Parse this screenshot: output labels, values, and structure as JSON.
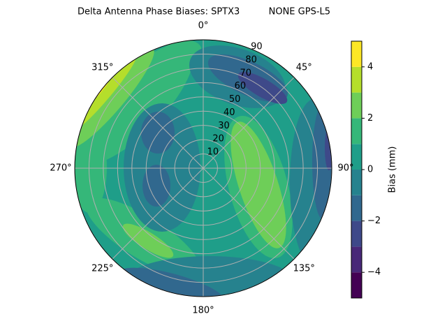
{
  "chart_data": {
    "type": "polar-contour",
    "title": "Delta Antenna Phase Biases: SPTX3          NONE GPS-L5",
    "rlim": [
      0,
      90
    ],
    "rticks": [
      10,
      20,
      30,
      40,
      50,
      60,
      70,
      80,
      90
    ],
    "thetaticks": [
      {
        "value": 0,
        "label": "0°"
      },
      {
        "value": 45,
        "label": "45°"
      },
      {
        "value": 90,
        "label": "90°"
      },
      {
        "value": 135,
        "label": "135°"
      },
      {
        "value": 180,
        "label": "180°"
      },
      {
        "value": 225,
        "label": "225°"
      },
      {
        "value": 270,
        "label": "270°"
      },
      {
        "value": 315,
        "label": "315°"
      }
    ],
    "grid": true,
    "levels": [
      -5,
      -4,
      -3,
      -2,
      -1,
      0,
      1,
      2,
      3,
      4,
      5
    ],
    "colors": [
      "#440154",
      "#482878",
      "#3e4989",
      "#31688e",
      "#26828e",
      "#1f9e89",
      "#35b779",
      "#6ece58",
      "#b5de2b",
      "#fde725"
    ],
    "colorbar_label": "Bias (mm)",
    "cticks": [
      {
        "value": -4,
        "label": "−4"
      },
      {
        "value": -2,
        "label": "−2"
      },
      0,
      2,
      4
    ]
  }
}
